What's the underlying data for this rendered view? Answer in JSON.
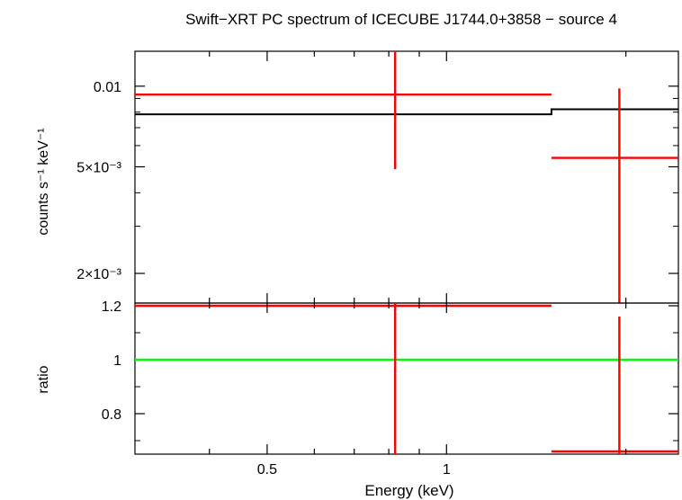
{
  "chart_data": [
    {
      "type": "line",
      "panel": "spectrum",
      "title": "Swift−XRT PC spectrum of ICECUBE J1744.0+3858 − source 4",
      "ylabel": "counts s⁻¹ keV⁻¹",
      "xscale": "log",
      "yscale": "log",
      "xlim": [
        0.3,
        2.45
      ],
      "ylim": [
        0.00155,
        0.0135
      ],
      "yticks": [
        {
          "value": 0.01,
          "label": "0.01"
        },
        {
          "value": 0.005,
          "label": "5×10⁻³"
        },
        {
          "value": 0.002,
          "label": "2×10⁻³"
        }
      ],
      "series": [
        {
          "kind": "data",
          "color": "#ff0000",
          "points": [
            {
              "x": 0.82,
              "xlo": 0.3,
              "xhi": 1.5,
              "y": 0.0093,
              "ylo": 0.0049,
              "yhi": 0.014
            },
            {
              "x": 1.95,
              "xlo": 1.5,
              "xhi": 2.45,
              "y": 0.0054,
              "ylo": 0.0013,
              "yhi": 0.0098
            }
          ]
        },
        {
          "kind": "model",
          "color": "#000000",
          "steps": [
            {
              "xlo": 0.3,
              "xhi": 1.5,
              "y": 0.00785
            },
            {
              "xlo": 1.5,
              "xhi": 2.45,
              "y": 0.0082
            }
          ]
        }
      ]
    },
    {
      "type": "line",
      "panel": "ratio",
      "xlabel": "Energy (keV)",
      "ylabel": "ratio",
      "xscale": "log",
      "yscale": "linear",
      "xlim": [
        0.3,
        2.45
      ],
      "ylim": [
        0.65,
        1.21
      ],
      "xticks": [
        {
          "value": 0.5,
          "label": "0.5"
        },
        {
          "value": 1,
          "label": "1"
        }
      ],
      "yticks": [
        {
          "value": 1.2,
          "label": "1.2"
        },
        {
          "value": 1,
          "label": "1"
        },
        {
          "value": 0.8,
          "label": "0.8"
        }
      ],
      "reference_line": {
        "y": 1,
        "color": "#00ff00"
      },
      "series": [
        {
          "kind": "data",
          "color": "#ff0000",
          "points": [
            {
              "x": 0.82,
              "xlo": 0.3,
              "xhi": 1.5,
              "y": 1.2,
              "ylo": 0.6,
              "yhi": 1.25
            },
            {
              "x": 1.95,
              "xlo": 1.5,
              "xhi": 2.45,
              "y": 0.66,
              "ylo": 0.6,
              "yhi": 1.16
            }
          ]
        }
      ]
    }
  ]
}
